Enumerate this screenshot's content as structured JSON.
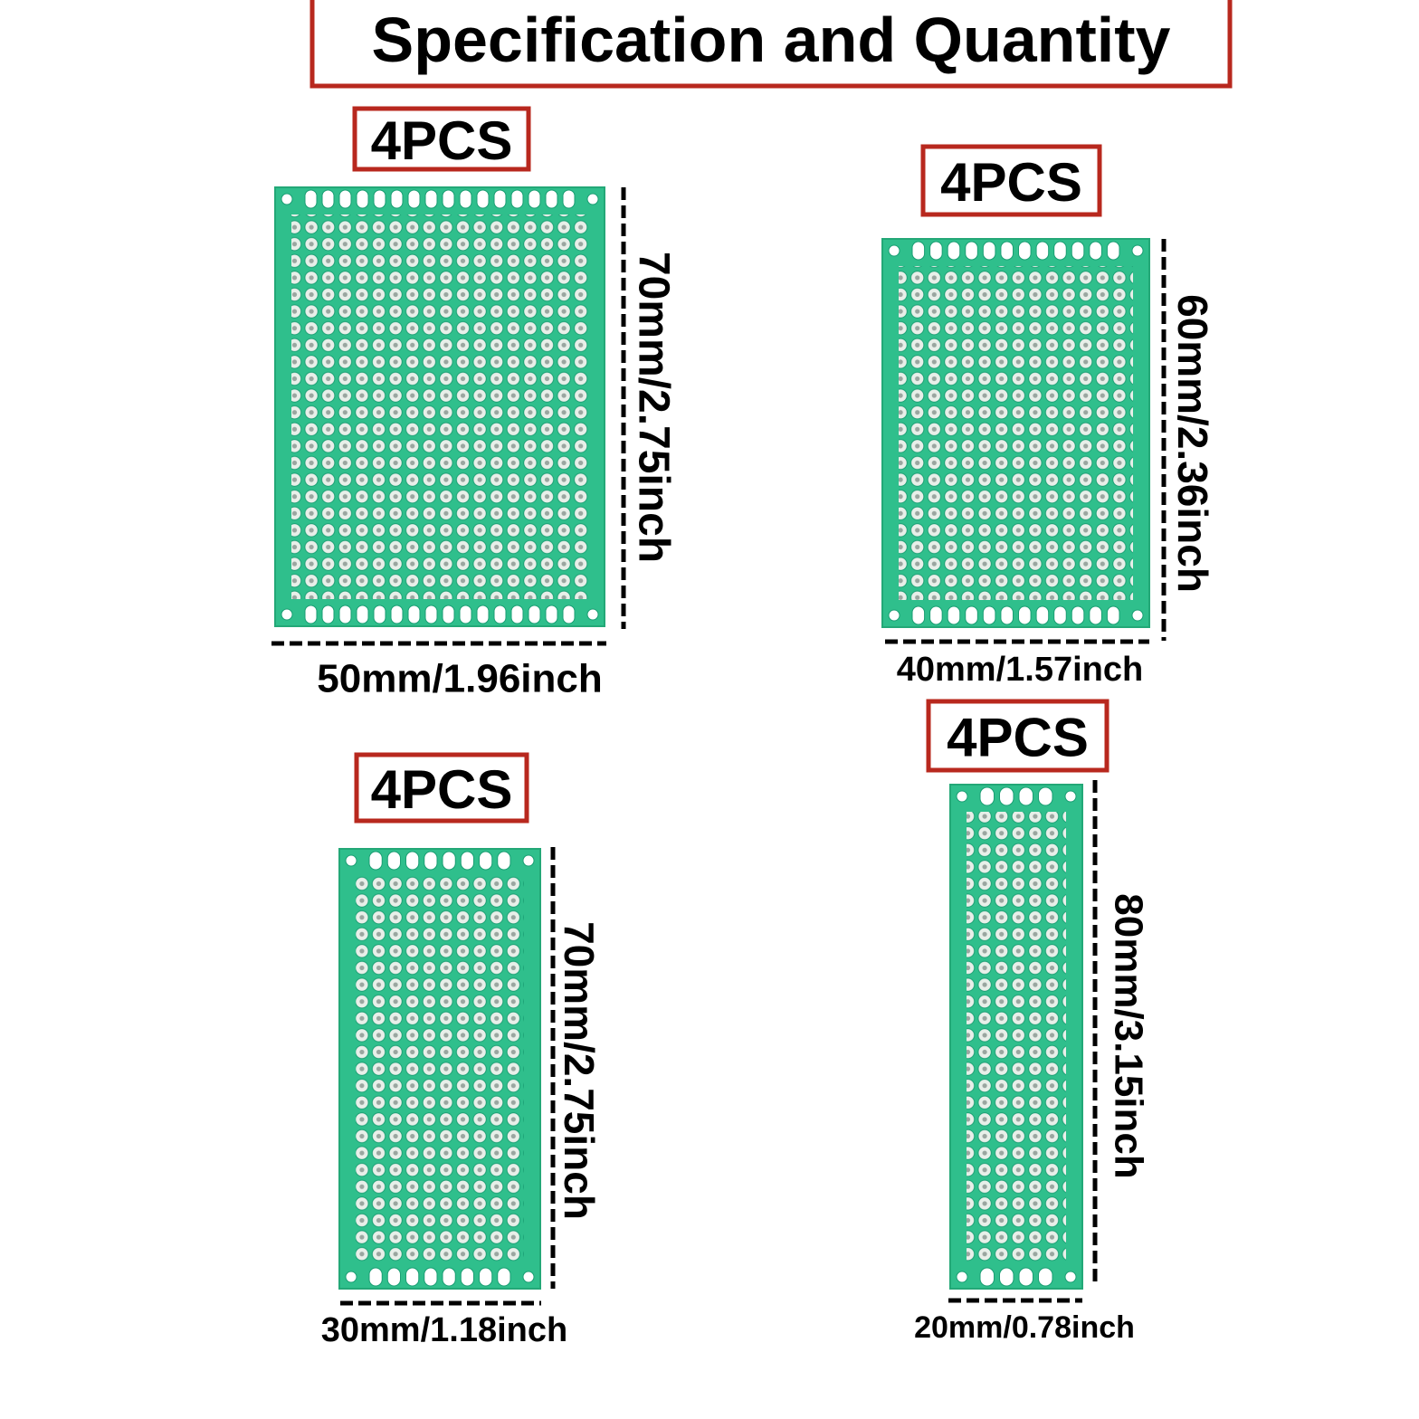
{
  "header": {
    "title": "Specification and Quantity"
  },
  "boards": [
    {
      "quantity": "4PCS",
      "height_label": "70mm/2.75inch",
      "width_label": "50mm/1.96inch"
    },
    {
      "quantity": "4PCS",
      "height_label": "60mm/2.36inch",
      "width_label": "40mm/1.57inch"
    },
    {
      "quantity": "4PCS",
      "height_label": "70mm/2.75inch",
      "width_label": "30mm/1.18inch"
    },
    {
      "quantity": "4PCS",
      "height_label": "80mm/3.15inch",
      "width_label": "20mm/0.78inch"
    }
  ]
}
